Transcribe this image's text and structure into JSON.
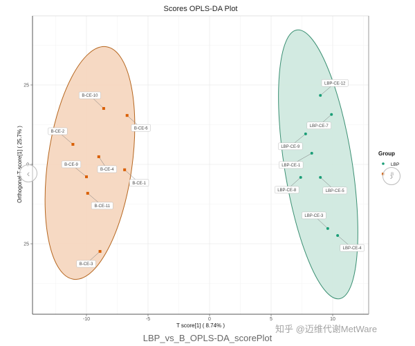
{
  "chart_data": {
    "type": "scatter",
    "title": "Scores OPLS-DA Plot",
    "xlabel": "T score[1] ( 8.74% )",
    "ylabel": "Orthogonal T score[1] ( 25.7% )",
    "xlim": [
      -14.5,
      12.8
    ],
    "ylim": [
      -47,
      47
    ],
    "x_ticks": [
      -10,
      -5,
      0,
      5,
      10
    ],
    "y_ticks": [
      -25,
      0,
      25
    ],
    "grid": true,
    "legend": {
      "title": "Group",
      "position": "right",
      "entries": [
        "LBP",
        "B"
      ]
    },
    "series": [
      {
        "name": "B",
        "color": "#d95f02",
        "ellipse_fill": "#f5d5bc",
        "ellipse_stroke": "#b5651d",
        "points": [
          {
            "label": "B-CE-10",
            "x": -8.6,
            "y": 17.6
          },
          {
            "label": "B-CE-6",
            "x": -6.7,
            "y": 15.4
          },
          {
            "label": "B-CE-2",
            "x": -11.1,
            "y": 6.3
          },
          {
            "label": "B-CE-4",
            "x": -9.0,
            "y": 2.4
          },
          {
            "label": "B-CE-9",
            "x": -10.0,
            "y": -3.9
          },
          {
            "label": "B-CE-1",
            "x": -6.9,
            "y": -1.7
          },
          {
            "label": "B-CE-11",
            "x": -9.9,
            "y": -9.1
          },
          {
            "label": "B-CE-3",
            "x": -8.9,
            "y": -27.4
          }
        ]
      },
      {
        "name": "LBP",
        "color": "#1b9e77",
        "ellipse_fill": "#cde8de",
        "ellipse_stroke": "#3a8f72",
        "points": [
          {
            "label": "LBP-CE-12",
            "x": 9.0,
            "y": 21.7
          },
          {
            "label": "LBP-CE-7",
            "x": 9.9,
            "y": 15.7
          },
          {
            "label": "LBP-CE-9",
            "x": 7.8,
            "y": 9.6
          },
          {
            "label": "LBP-CE-1",
            "x": 8.3,
            "y": 3.5
          },
          {
            "label": "LBP-CE-8",
            "x": 7.4,
            "y": -4.1
          },
          {
            "label": "LBP-CE-5",
            "x": 9.0,
            "y": -4.1
          },
          {
            "label": "LBP-CE-3",
            "x": 9.6,
            "y": -20.2
          },
          {
            "label": "LBP-CE-4",
            "x": 10.4,
            "y": -22.4
          }
        ]
      }
    ]
  },
  "footer": {
    "caption": "LBP_vs_B_OPLS-DA_scorePlot"
  },
  "watermark": {
    "text": "知乎 @迈维代谢MetWare"
  },
  "nav": {
    "prev_icon": "‹",
    "next_icon": "›"
  }
}
